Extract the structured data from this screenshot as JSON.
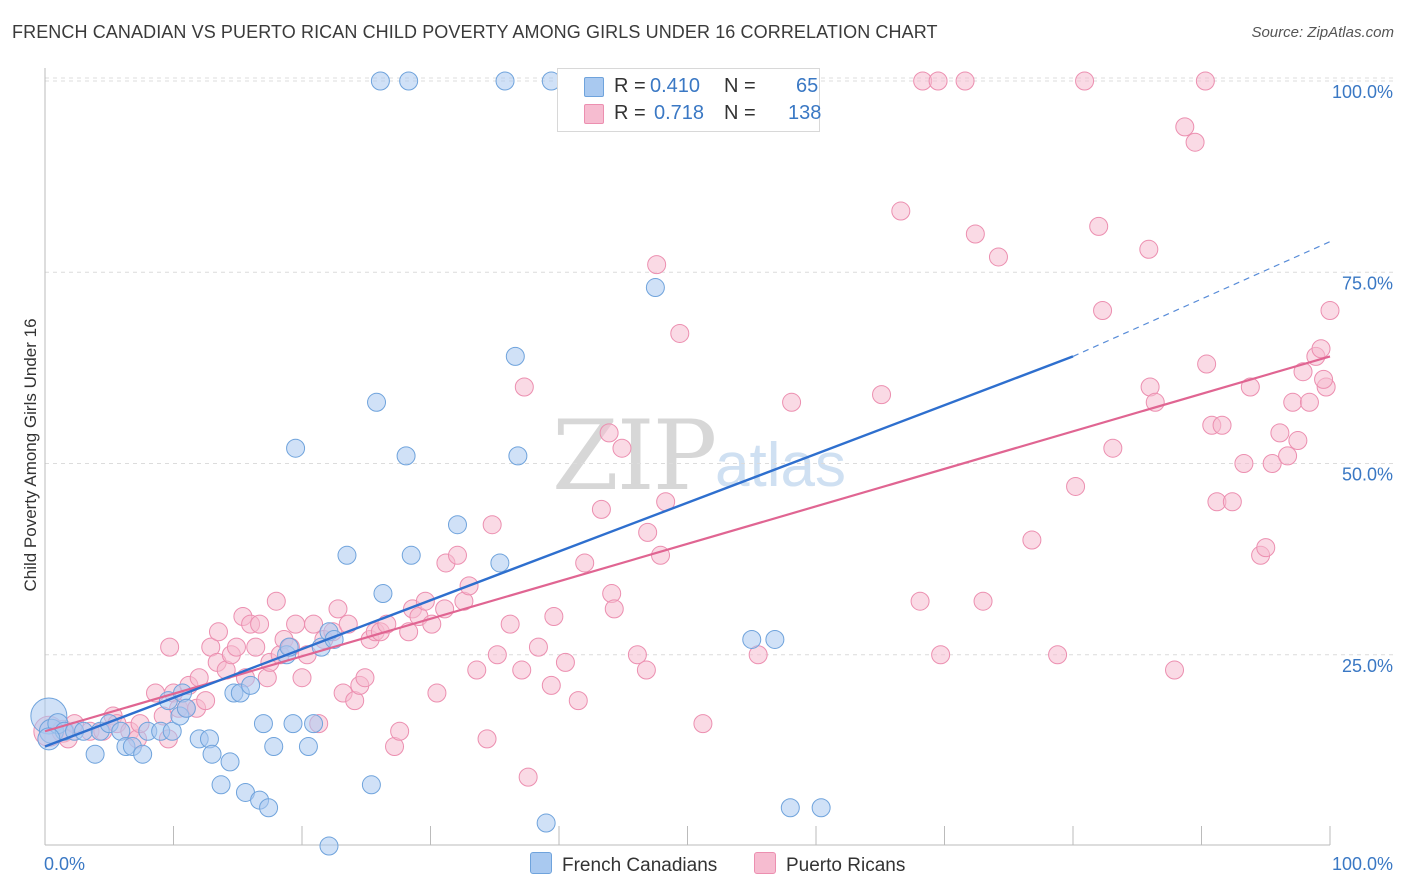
{
  "header": {
    "title": "FRENCH CANADIAN VS PUERTO RICAN CHILD POVERTY AMONG GIRLS UNDER 16 CORRELATION CHART",
    "source": "Source: ZipAtlas.com"
  },
  "watermark": {
    "zip": "ZIP",
    "atlas": "atlas"
  },
  "legend_top": {
    "rows": [
      {
        "r_label": "R =",
        "r_value": "0.410",
        "n_label": "N =",
        "n_value": "65"
      },
      {
        "r_label": "R =",
        "r_value": "0.718",
        "n_label": "N =",
        "n_value": "138"
      }
    ]
  },
  "legend_bottom": {
    "blue_label": "French Canadians",
    "pink_label": "Puerto Ricans"
  },
  "colors": {
    "blue_fill": "#a9c9f0",
    "blue_stroke": "#6fa3dc",
    "blue_line": "#2e6fce",
    "pink_fill": "#f6bcd0",
    "pink_stroke": "#ec8fb0",
    "pink_line": "#e06592",
    "tick_text": "#3a78c4",
    "grid": "#dcdcdc"
  },
  "chart_data": {
    "type": "scatter",
    "title": "FRENCH CANADIAN VS PUERTO RICAN CHILD POVERTY AMONG GIRLS UNDER 16 CORRELATION CHART",
    "xlabel": "",
    "ylabel": "Child Poverty Among Girls Under 16",
    "xlim": [
      0,
      100
    ],
    "ylim": [
      0,
      105
    ],
    "x_tick_labels": [
      "0.0%",
      "100.0%"
    ],
    "y_ticks": [
      25,
      50,
      75,
      100
    ],
    "y_tick_labels": [
      "25.0%",
      "50.0%",
      "75.0%",
      "100.0%"
    ],
    "grid": "horizontal dashed",
    "legend_position": "top-center",
    "series": [
      {
        "name": "French Canadians",
        "r": 0.41,
        "n": 65,
        "trend": {
          "x0": 0,
          "y0": 13,
          "x1": 80,
          "y1": 64,
          "dashed_to_x": 100,
          "dashed_to_y": 79
        },
        "points": [
          [
            0.3,
            17,
            18
          ],
          [
            0.5,
            15,
            12
          ],
          [
            1,
            16,
            10
          ],
          [
            1.5,
            15,
            9
          ],
          [
            2.3,
            15,
            9
          ],
          [
            3,
            15,
            9
          ],
          [
            3.9,
            12,
            9
          ],
          [
            4.3,
            15,
            9
          ],
          [
            5,
            16,
            9
          ],
          [
            5.9,
            15,
            9
          ],
          [
            6.3,
            13,
            9
          ],
          [
            6.8,
            13,
            9
          ],
          [
            7.6,
            12,
            9
          ],
          [
            8,
            15,
            9
          ],
          [
            9,
            15,
            9
          ],
          [
            9.6,
            19,
            9
          ],
          [
            9.9,
            15,
            9
          ],
          [
            10.5,
            17,
            9
          ],
          [
            10.7,
            20,
            9
          ],
          [
            11,
            18,
            9
          ],
          [
            12,
            14,
            9
          ],
          [
            12.8,
            14,
            9
          ],
          [
            13,
            12,
            9
          ],
          [
            13.7,
            8,
            9
          ],
          [
            14.4,
            11,
            9
          ],
          [
            14.7,
            20,
            9
          ],
          [
            15.2,
            20,
            9
          ],
          [
            15.6,
            7,
            9
          ],
          [
            16,
            21,
            9
          ],
          [
            16.7,
            6,
            9
          ],
          [
            17,
            16,
            9
          ],
          [
            17.4,
            5,
            9
          ],
          [
            17.8,
            13,
            9
          ],
          [
            18.8,
            25,
            9
          ],
          [
            19,
            26,
            9
          ],
          [
            19.3,
            16,
            9
          ],
          [
            19.5,
            52,
            9
          ],
          [
            20.5,
            13,
            9
          ],
          [
            20.9,
            16,
            9
          ],
          [
            21.5,
            26,
            9
          ],
          [
            22.1,
            28,
            9
          ],
          [
            22.1,
            0,
            9
          ],
          [
            23.5,
            38,
            9
          ],
          [
            25.4,
            8,
            9
          ],
          [
            25.8,
            58,
            9
          ],
          [
            26.3,
            33,
            9
          ],
          [
            26.1,
            100,
            9
          ],
          [
            28.3,
            100,
            9
          ],
          [
            28.1,
            51,
            9
          ],
          [
            28.5,
            38,
            9
          ],
          [
            32.1,
            42,
            9
          ],
          [
            35.4,
            37,
            9
          ],
          [
            35.8,
            100,
            9
          ],
          [
            36.6,
            64,
            9
          ],
          [
            36.8,
            51,
            9
          ],
          [
            39.4,
            100,
            9
          ],
          [
            39,
            3,
            9
          ],
          [
            47.5,
            73,
            9
          ],
          [
            55,
            27,
            9
          ],
          [
            56.8,
            27,
            9
          ],
          [
            58,
            5,
            9
          ],
          [
            60.4,
            5,
            9
          ],
          [
            22.5,
            27,
            9
          ],
          [
            0.3,
            14,
            11
          ]
        ]
      },
      {
        "name": "Puerto Ricans",
        "r": 0.718,
        "n": 138,
        "trend": {
          "x0": 0,
          "y0": 15,
          "x1": 100,
          "y1": 64
        },
        "points": [
          [
            0.3,
            15,
            15
          ],
          [
            1.4,
            15,
            11
          ],
          [
            1.8,
            14,
            9
          ],
          [
            2.3,
            16,
            9
          ],
          [
            3.5,
            15,
            9
          ],
          [
            4.5,
            15,
            9
          ],
          [
            5.3,
            17,
            9
          ],
          [
            5.6,
            16,
            9
          ],
          [
            6.6,
            15,
            9
          ],
          [
            7.2,
            14,
            9
          ],
          [
            7.4,
            16,
            9
          ],
          [
            8.6,
            20,
            9
          ],
          [
            9.2,
            17,
            9
          ],
          [
            9.6,
            14,
            9
          ],
          [
            9.7,
            26,
            9
          ],
          [
            10,
            20,
            9
          ],
          [
            10.4,
            18,
            9
          ],
          [
            11,
            18,
            9
          ],
          [
            11.2,
            21,
            9
          ],
          [
            11.8,
            18,
            9
          ],
          [
            12,
            22,
            9
          ],
          [
            12.5,
            19,
            9
          ],
          [
            12.9,
            26,
            9
          ],
          [
            13.4,
            24,
            9
          ],
          [
            13.5,
            28,
            9
          ],
          [
            14.1,
            23,
            9
          ],
          [
            14.5,
            25,
            9
          ],
          [
            14.9,
            26,
            9
          ],
          [
            15.4,
            30,
            9
          ],
          [
            15.6,
            22,
            9
          ],
          [
            16,
            29,
            9
          ],
          [
            16.4,
            26,
            9
          ],
          [
            16.7,
            29,
            9
          ],
          [
            17.3,
            22,
            9
          ],
          [
            17.5,
            24,
            9
          ],
          [
            18,
            32,
            9
          ],
          [
            18.3,
            25,
            9
          ],
          [
            18.6,
            27,
            9
          ],
          [
            19.1,
            26,
            9
          ],
          [
            19.5,
            29,
            9
          ],
          [
            20,
            22,
            9
          ],
          [
            20.4,
            25,
            9
          ],
          [
            20.9,
            29,
            9
          ],
          [
            21.3,
            16,
            9
          ],
          [
            21.7,
            27,
            9
          ],
          [
            22.4,
            28,
            9
          ],
          [
            22.8,
            31,
            9
          ],
          [
            23.2,
            20,
            9
          ],
          [
            23.6,
            29,
            9
          ],
          [
            24.1,
            19,
            9
          ],
          [
            24.5,
            21,
            9
          ],
          [
            24.9,
            22,
            9
          ],
          [
            25.3,
            27,
            9
          ],
          [
            25.7,
            28,
            9
          ],
          [
            26.1,
            28,
            9
          ],
          [
            26.6,
            29,
            9
          ],
          [
            27.2,
            13,
            9
          ],
          [
            27.6,
            15,
            9
          ],
          [
            28.3,
            28,
            9
          ],
          [
            28.6,
            31,
            9
          ],
          [
            29.1,
            30,
            9
          ],
          [
            29.6,
            32,
            9
          ],
          [
            30.1,
            29,
            9
          ],
          [
            30.5,
            20,
            9
          ],
          [
            31.1,
            31,
            9
          ],
          [
            31.2,
            37,
            9
          ],
          [
            32.1,
            38,
            9
          ],
          [
            32.6,
            32,
            9
          ],
          [
            33,
            34,
            9
          ],
          [
            33.6,
            23,
            9
          ],
          [
            34.4,
            14,
            9
          ],
          [
            34.8,
            42,
            9
          ],
          [
            35.2,
            25,
            9
          ],
          [
            36.2,
            29,
            9
          ],
          [
            37.1,
            23,
            9
          ],
          [
            37.3,
            60,
            9
          ],
          [
            37.6,
            9,
            9
          ],
          [
            38.4,
            26,
            9
          ],
          [
            39.4,
            21,
            9
          ],
          [
            39.6,
            30,
            9
          ],
          [
            40.5,
            24,
            9
          ],
          [
            41.5,
            19,
            9
          ],
          [
            42,
            37,
            9
          ],
          [
            43.3,
            44,
            9
          ],
          [
            43.9,
            54,
            9
          ],
          [
            44.1,
            33,
            9
          ],
          [
            44.3,
            31,
            9
          ],
          [
            44.9,
            52,
            9
          ],
          [
            46.1,
            25,
            9
          ],
          [
            46.8,
            23,
            9
          ],
          [
            46.9,
            41,
            9
          ],
          [
            47.6,
            76,
            9
          ],
          [
            47.9,
            38,
            9
          ],
          [
            48.3,
            45,
            9
          ],
          [
            49.4,
            67,
            9
          ],
          [
            51.2,
            16,
            9
          ],
          [
            55.5,
            25,
            9
          ],
          [
            58.1,
            58,
            9
          ],
          [
            65.1,
            59,
            9
          ],
          [
            66.6,
            83,
            9
          ],
          [
            68.1,
            32,
            9
          ],
          [
            68.3,
            100,
            9
          ],
          [
            69.5,
            100,
            9
          ],
          [
            69.7,
            25,
            9
          ],
          [
            71.6,
            100,
            9
          ],
          [
            72.4,
            80,
            9
          ],
          [
            73,
            32,
            9
          ],
          [
            74.2,
            77,
            9
          ],
          [
            76.8,
            40,
            9
          ],
          [
            78.8,
            25,
            9
          ],
          [
            80.2,
            47,
            9
          ],
          [
            82,
            81,
            9
          ],
          [
            82.3,
            70,
            9
          ],
          [
            83.1,
            52,
            9
          ],
          [
            85.9,
            78,
            9
          ],
          [
            86,
            60,
            9
          ],
          [
            86.4,
            58,
            9
          ],
          [
            87.9,
            23,
            9
          ],
          [
            88.7,
            94,
            9
          ],
          [
            89.5,
            92,
            9
          ],
          [
            90.4,
            63,
            9
          ],
          [
            90.8,
            55,
            9
          ],
          [
            91.2,
            45,
            9
          ],
          [
            91.6,
            55,
            9
          ],
          [
            92.4,
            45,
            9
          ],
          [
            93.3,
            50,
            9
          ],
          [
            93.8,
            60,
            9
          ],
          [
            94.6,
            38,
            9
          ],
          [
            95,
            39,
            9
          ],
          [
            95.5,
            50,
            9
          ],
          [
            96.1,
            54,
            9
          ],
          [
            96.7,
            51,
            9
          ],
          [
            97.1,
            58,
            9
          ],
          [
            97.5,
            53,
            9
          ],
          [
            97.9,
            62,
            9
          ],
          [
            98.4,
            58,
            9
          ],
          [
            98.9,
            64,
            9
          ],
          [
            99.3,
            65,
            9
          ],
          [
            99.7,
            60,
            9
          ],
          [
            100,
            70,
            9
          ],
          [
            99.5,
            61,
            9
          ],
          [
            80.9,
            100,
            9
          ],
          [
            90.3,
            100,
            9
          ]
        ]
      }
    ]
  }
}
